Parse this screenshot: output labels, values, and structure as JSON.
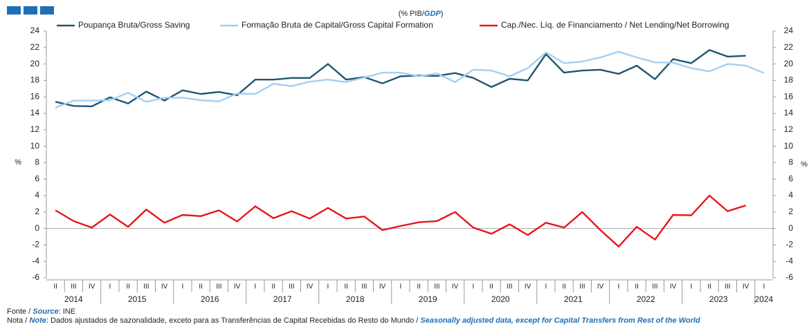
{
  "chart_data": {
    "type": "line",
    "title": [
      "(% PIB/",
      "GDP",
      ")"
    ],
    "ylabel": "%",
    "y2label": "%",
    "categories": [
      "II",
      "III",
      "IV",
      "I",
      "II",
      "III",
      "IV",
      "I",
      "II",
      "III",
      "IV",
      "I",
      "II",
      "III",
      "IV",
      "I",
      "II",
      "III",
      "IV",
      "I",
      "II",
      "III",
      "IV",
      "I",
      "II",
      "III",
      "IV",
      "I",
      "II",
      "III",
      "IV",
      "I",
      "II",
      "III",
      "IV",
      "I",
      "II",
      "III",
      "IV",
      "I"
    ],
    "years": [
      "2014",
      "2015",
      "2016",
      "2017",
      "2018",
      "2019",
      "2020",
      "2021",
      "2022",
      "2023",
      "2024"
    ],
    "series": [
      {
        "name": "Poupança Bruta/Gross Saving",
        "color": "#1f5670",
        "values": [
          15.4,
          14.9,
          14.85,
          15.95,
          15.2,
          16.65,
          15.55,
          16.8,
          16.35,
          16.6,
          16.2,
          18.1,
          18.1,
          18.3,
          18.3,
          20.0,
          18.1,
          18.4,
          17.65,
          18.5,
          18.6,
          18.55,
          18.9,
          18.3,
          17.2,
          18.2,
          18.0,
          21.2,
          18.95,
          19.2,
          19.3,
          18.8,
          19.8,
          18.15,
          20.6,
          20.1,
          21.7,
          20.9,
          21.0,
          null
        ]
      },
      {
        "name": "Formação Bruta de Capital/Gross Capital Formation",
        "color": "#a3cff2",
        "values": [
          14.7,
          15.55,
          15.55,
          15.6,
          16.5,
          15.4,
          15.9,
          15.9,
          15.6,
          15.45,
          16.4,
          16.35,
          17.6,
          17.3,
          17.85,
          18.1,
          17.8,
          18.35,
          18.95,
          18.95,
          18.5,
          18.85,
          17.8,
          19.3,
          19.2,
          18.5,
          19.5,
          21.4,
          20.1,
          20.3,
          20.8,
          21.5,
          20.8,
          20.2,
          20.15,
          19.5,
          19.1,
          20.0,
          19.8,
          18.9
        ]
      },
      {
        "name": "Cap./Nec. Líq. de Financiamento / Net Lending/Net Borrowing",
        "color": "#e8141b",
        "values": [
          2.2,
          0.9,
          0.1,
          1.7,
          0.2,
          2.3,
          0.7,
          1.65,
          1.5,
          2.2,
          0.85,
          2.7,
          1.25,
          2.1,
          1.2,
          2.5,
          1.2,
          1.45,
          -0.2,
          0.3,
          0.75,
          0.9,
          2.0,
          0.1,
          -0.65,
          0.5,
          -0.8,
          0.7,
          0.1,
          2.0,
          -0.2,
          -2.2,
          0.2,
          -1.35,
          1.65,
          1.6,
          4.0,
          2.1,
          2.8,
          null
        ]
      }
    ],
    "ylim": [
      -6,
      24
    ],
    "yticks": [
      -6,
      -4,
      -2,
      0,
      2,
      4,
      6,
      8,
      10,
      12,
      14,
      16,
      18,
      20,
      22,
      24
    ],
    "y2lim": [
      -6,
      24
    ],
    "y2ticks": [
      -6,
      -4,
      -2,
      0,
      2,
      4,
      6,
      8,
      10,
      12,
      14,
      16,
      18,
      20,
      22,
      24
    ],
    "grid": false
  },
  "footer": {
    "source": [
      "Fonte / ",
      "Source",
      ":  INE"
    ],
    "note": [
      "Nota / ",
      "Note",
      ": Dados ajustados de sazonalidade, exceto para as Transferências de Capital Recebidas do Resto do Mundo / ",
      "Seasonally adjusted data, except for Capital Transfers from Rest of the World"
    ]
  }
}
